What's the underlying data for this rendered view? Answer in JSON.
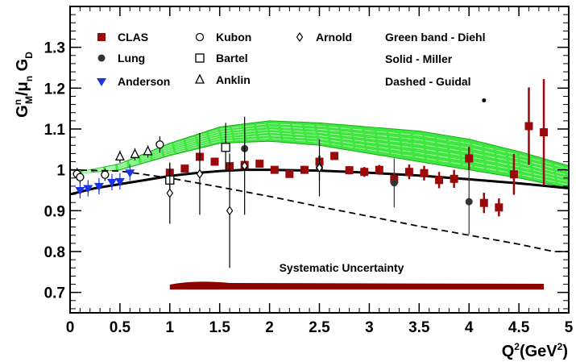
{
  "chart_data": {
    "type": "scatter",
    "xlabel": "Q2(GeV2)",
    "ylabel": "GMn/μnGD",
    "xlim": [
      0,
      5
    ],
    "ylim": [
      0.65,
      1.4
    ],
    "x_ticks": [
      "0",
      "0.5",
      "1",
      "1.5",
      "2",
      "2.5",
      "3",
      "3.5",
      "4",
      "4.5",
      "5"
    ],
    "y_ticks": [
      "0.7",
      "0.8",
      "0.9",
      "1",
      "1.1",
      "1.2",
      "1.3"
    ],
    "annotation": "Systematic Uncertainty",
    "legend": [
      {
        "label": "CLAS",
        "marker": "filled-square",
        "color": "#9b0a0a"
      },
      {
        "label": "Lung",
        "marker": "filled-circle",
        "color": "#333333"
      },
      {
        "label": "Anderson",
        "marker": "filled-triangle-down",
        "color": "#1a33e6"
      },
      {
        "label": "Kubon",
        "marker": "open-circle",
        "color": "#000000"
      },
      {
        "label": "Bartel",
        "marker": "open-square",
        "color": "#000000"
      },
      {
        "label": "Anklin",
        "marker": "open-triangle-up",
        "color": "#000000"
      },
      {
        "label": "Arnold",
        "marker": "open-diamond",
        "color": "#000000"
      },
      {
        "label": "Green band - Diehl",
        "marker": "none",
        "color": "#000000"
      },
      {
        "label": "Solid - Miller",
        "marker": "none",
        "color": "#000000"
      },
      {
        "label": "Dashed - Guidal",
        "marker": "none",
        "color": "#000000"
      }
    ],
    "series": [
      {
        "name": "CLAS",
        "color": "#9b0a0a",
        "marker": "filled-square",
        "points": [
          {
            "x": 1.0,
            "y": 0.993,
            "err": 0.01
          },
          {
            "x": 1.15,
            "y": 1.003,
            "err": 0.008
          },
          {
            "x": 1.3,
            "y": 1.032,
            "err": 0.008
          },
          {
            "x": 1.45,
            "y": 1.02,
            "err": 0.008
          },
          {
            "x": 1.6,
            "y": 1.009,
            "err": 0.008
          },
          {
            "x": 1.75,
            "y": 1.012,
            "err": 0.008
          },
          {
            "x": 1.9,
            "y": 1.015,
            "err": 0.008
          },
          {
            "x": 2.05,
            "y": 1.0,
            "err": 0.006
          },
          {
            "x": 2.2,
            "y": 0.99,
            "err": 0.008
          },
          {
            "x": 2.35,
            "y": 1.0,
            "err": 0.008
          },
          {
            "x": 2.5,
            "y": 1.02,
            "err": 0.015
          },
          {
            "x": 2.65,
            "y": 1.034,
            "err": 0.01
          },
          {
            "x": 2.8,
            "y": 0.999,
            "err": 0.01
          },
          {
            "x": 2.95,
            "y": 0.995,
            "err": 0.012
          },
          {
            "x": 3.1,
            "y": 1.0,
            "err": 0.012
          },
          {
            "x": 3.25,
            "y": 0.977,
            "err": 0.015
          },
          {
            "x": 3.4,
            "y": 0.995,
            "err": 0.018
          },
          {
            "x": 3.55,
            "y": 0.992,
            "err": 0.018
          },
          {
            "x": 3.7,
            "y": 0.975,
            "err": 0.02
          },
          {
            "x": 3.85,
            "y": 0.978,
            "err": 0.022
          },
          {
            "x": 4.0,
            "y": 1.028,
            "err": 0.028
          },
          {
            "x": 4.15,
            "y": 0.919,
            "err": 0.025
          },
          {
            "x": 4.3,
            "y": 0.908,
            "err": 0.022
          },
          {
            "x": 4.45,
            "y": 0.989,
            "err": 0.05
          },
          {
            "x": 4.6,
            "y": 1.107,
            "err": 0.095
          },
          {
            "x": 4.75,
            "y": 1.092,
            "err": 0.13
          }
        ]
      },
      {
        "name": "Lung",
        "color": "#333333",
        "marker": "filled-circle",
        "points": [
          {
            "x": 1.75,
            "y": 1.052,
            "err": 0.05
          },
          {
            "x": 2.5,
            "y": 1.005,
            "err": 0.03
          },
          {
            "x": 3.25,
            "y": 0.968,
            "err": 0.06
          },
          {
            "x": 4.0,
            "y": 0.922,
            "err": 0.08
          }
        ]
      },
      {
        "name": "Anderson",
        "color": "#1a33e6",
        "marker": "filled-triangle-down",
        "points": [
          {
            "x": 0.1,
            "y": 0.95,
            "err": 0.02
          },
          {
            "x": 0.18,
            "y": 0.955,
            "err": 0.02
          },
          {
            "x": 0.29,
            "y": 0.96,
            "err": 0.02
          },
          {
            "x": 0.42,
            "y": 0.97,
            "err": 0.02
          },
          {
            "x": 0.5,
            "y": 0.972,
            "err": 0.02
          },
          {
            "x": 0.6,
            "y": 0.993,
            "err": 0.02
          }
        ]
      },
      {
        "name": "Kubon",
        "color": "#000000",
        "marker": "open-circle",
        "points": [
          {
            "x": 0.07,
            "y": 0.99,
            "err": 0.015
          },
          {
            "x": 0.1,
            "y": 0.982,
            "err": 0.015
          },
          {
            "x": 0.35,
            "y": 0.988,
            "err": 0.015
          },
          {
            "x": 0.9,
            "y": 1.062,
            "err": 0.02
          }
        ]
      },
      {
        "name": "Bartel",
        "color": "#000000",
        "marker": "open-square",
        "points": [
          {
            "x": 1.0,
            "y": 0.975,
            "err": 0.04
          },
          {
            "x": 1.56,
            "y": 1.055,
            "err": 0.06
          }
        ]
      },
      {
        "name": "Anklin",
        "color": "#000000",
        "marker": "open-triangle-up",
        "points": [
          {
            "x": 0.5,
            "y": 1.032,
            "err": 0.015
          },
          {
            "x": 0.65,
            "y": 1.038,
            "err": 0.015
          },
          {
            "x": 0.78,
            "y": 1.045,
            "err": 0.015
          }
        ]
      },
      {
        "name": "Arnold",
        "color": "#000000",
        "marker": "open-diamond",
        "points": [
          {
            "x": 1.0,
            "y": 0.943,
            "err": 0.075
          },
          {
            "x": 1.3,
            "y": 0.99,
            "err": 0.1
          },
          {
            "x": 1.6,
            "y": 0.9,
            "err": 0.14
          },
          {
            "x": 1.75,
            "y": 1.01,
            "err": 0.12
          },
          {
            "x": 2.5,
            "y": 1.005,
            "err": 0.07
          }
        ]
      }
    ],
    "curves": [
      {
        "name": "Miller",
        "style": "solid",
        "color": "#000000",
        "x": [
          0,
          0.25,
          0.5,
          0.75,
          1.0,
          1.25,
          1.5,
          1.75,
          2.0,
          2.5,
          3.0,
          3.5,
          4.0,
          4.5,
          5.0
        ],
        "y": [
          0.94,
          0.955,
          0.965,
          0.975,
          0.985,
          0.992,
          0.997,
          1.0,
          1.0,
          0.998,
          0.993,
          0.986,
          0.977,
          0.967,
          0.955
        ]
      },
      {
        "name": "Guidal",
        "style": "dashed",
        "color": "#000000",
        "x": [
          0,
          0.5,
          1.0,
          1.5,
          2.0,
          2.5,
          3.0,
          3.5,
          4.0,
          4.5,
          4.85,
          5.0
        ],
        "y": [
          1.0,
          0.997,
          0.98,
          0.958,
          0.935,
          0.91,
          0.886,
          0.862,
          0.84,
          0.818,
          0.8,
          0.8
        ]
      }
    ],
    "band": {
      "name": "Diehl",
      "color": "#20e020",
      "x": [
        0,
        0.5,
        1.0,
        1.5,
        2.0,
        2.5,
        3.0,
        3.5,
        4.0,
        4.5,
        5.0
      ],
      "lower": [
        0.99,
        1.0,
        1.035,
        1.065,
        1.07,
        1.06,
        1.04,
        1.02,
        1.0,
        0.98,
        0.955
      ],
      "upper": [
        0.99,
        1.015,
        1.065,
        1.105,
        1.12,
        1.115,
        1.105,
        1.095,
        1.075,
        1.045,
        1.01
      ]
    },
    "systematic_band": {
      "x_start": 1.0,
      "x_end": 4.75,
      "y_center": 0.715,
      "thickness": 0.016,
      "color": "#8b0000"
    },
    "stray_point": {
      "x": 4.15,
      "y": 1.17,
      "color": "#000000"
    }
  }
}
